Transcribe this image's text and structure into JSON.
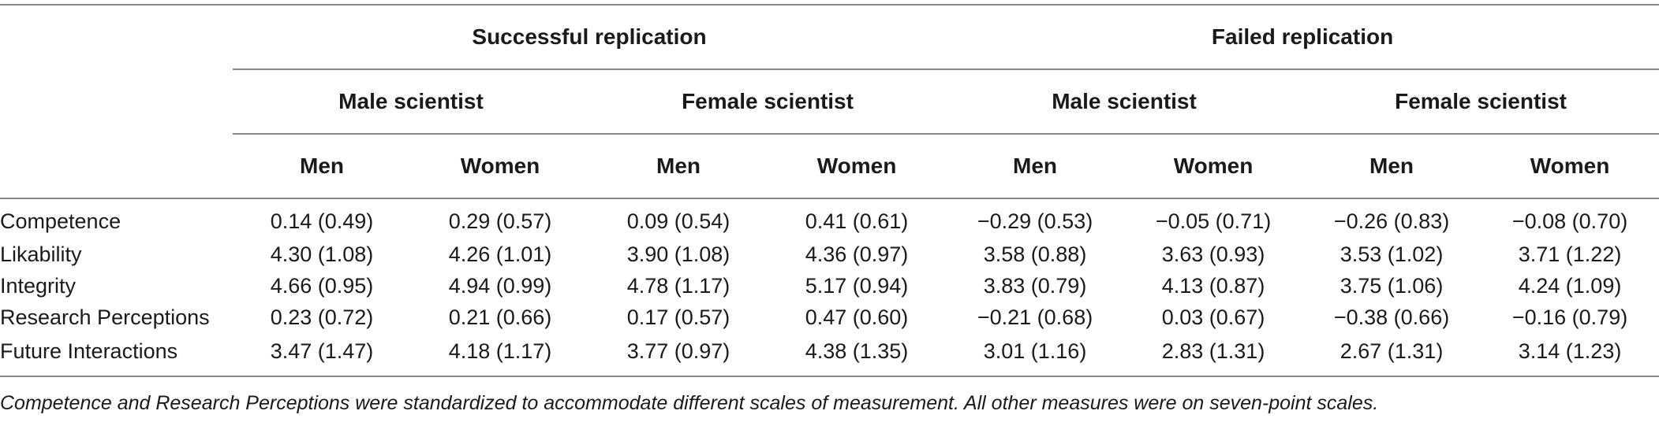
{
  "table": {
    "groups": [
      "Successful replication",
      "Failed replication"
    ],
    "scientists": [
      "Male scientist",
      "Female scientist",
      "Male scientist",
      "Female scientist"
    ],
    "genders": [
      "Men",
      "Women",
      "Men",
      "Women",
      "Men",
      "Women",
      "Men",
      "Women"
    ],
    "rows": [
      {
        "label": "Competence",
        "values": [
          "0.14 (0.49)",
          "0.29 (0.57)",
          "0.09 (0.54)",
          "0.41 (0.61)",
          "−0.29 (0.53)",
          "−0.05 (0.71)",
          "−0.26 (0.83)",
          "−0.08 (0.70)"
        ]
      },
      {
        "label": "Likability",
        "values": [
          "4.30 (1.08)",
          "4.26 (1.01)",
          "3.90 (1.08)",
          "4.36 (0.97)",
          "3.58 (0.88)",
          "3.63 (0.93)",
          "3.53 (1.02)",
          "3.71 (1.22)"
        ]
      },
      {
        "label": "Integrity",
        "values": [
          "4.66 (0.95)",
          "4.94 (0.99)",
          "4.78 (1.17)",
          "5.17 (0.94)",
          "3.83 (0.79)",
          "4.13 (0.87)",
          "3.75 (1.06)",
          "4.24 (1.09)"
        ]
      },
      {
        "label": "Research Perceptions",
        "values": [
          "0.23 (0.72)",
          "0.21 (0.66)",
          "0.17 (0.57)",
          "0.47 (0.60)",
          "−0.21 (0.68)",
          "0.03 (0.67)",
          "−0.38 (0.66)",
          "−0.16 (0.79)"
        ]
      },
      {
        "label": "Future Interactions",
        "values": [
          "3.47 (1.47)",
          "4.18 (1.17)",
          "3.77 (0.97)",
          "4.38 (1.35)",
          "3.01 (1.16)",
          "2.83 (1.31)",
          "2.67 (1.31)",
          "3.14 (1.23)"
        ]
      }
    ]
  },
  "footnote": "Competence and Research Perceptions were standardized to accommodate different scales of measurement. All other measures were on seven-point scales."
}
